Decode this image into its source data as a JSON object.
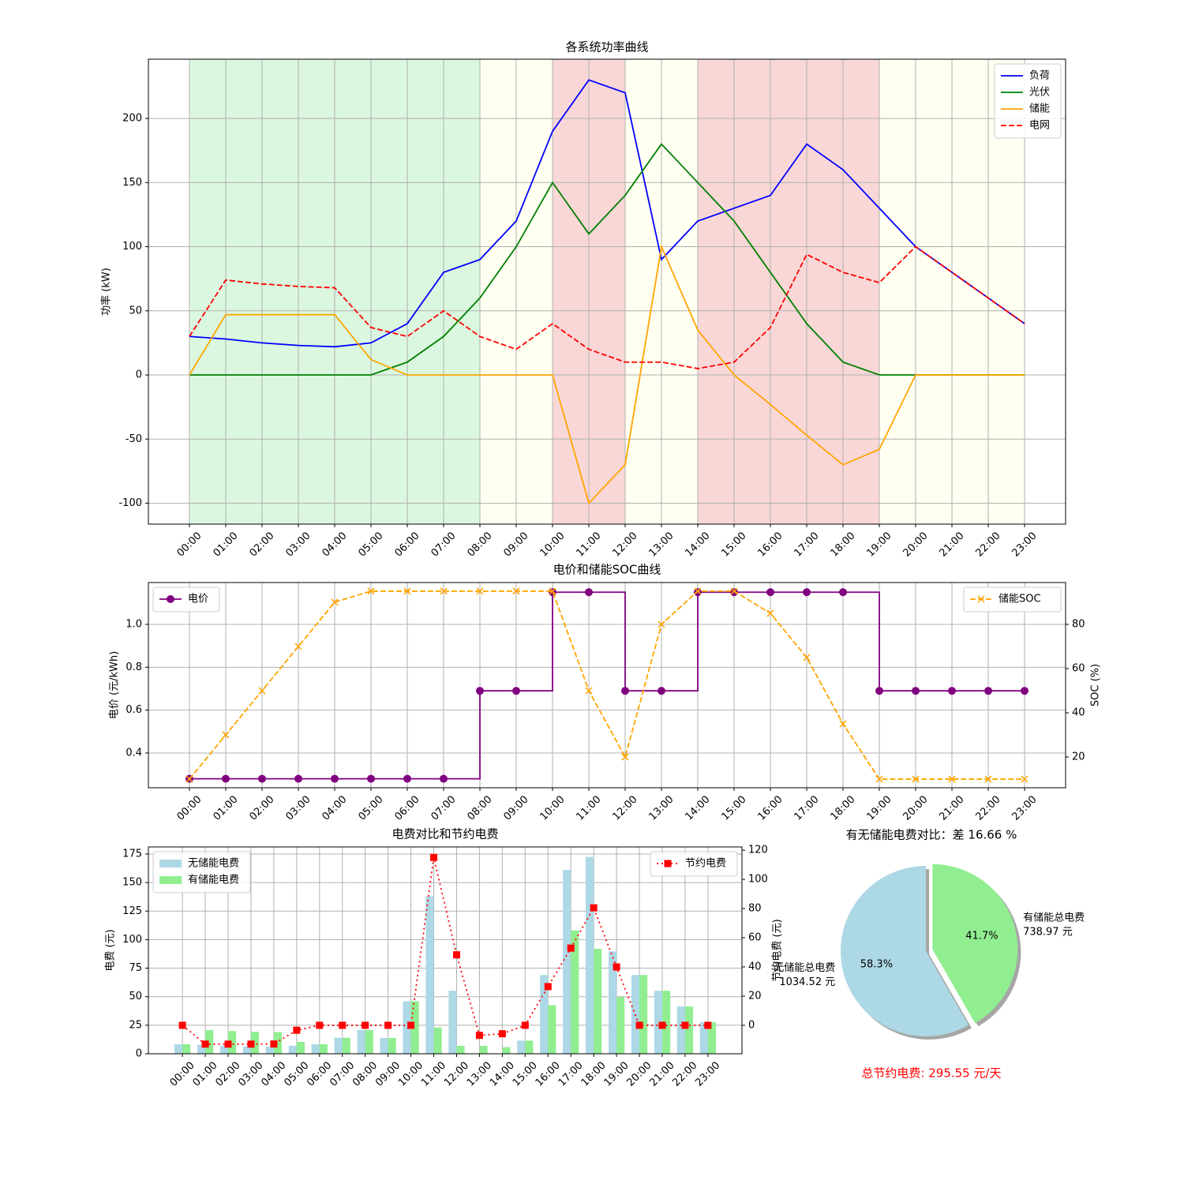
{
  "chart_data": [
    {
      "type": "line",
      "title": "各系统功率曲线",
      "y_label": "功率 (kW)",
      "categories": [
        "00:00",
        "01:00",
        "02:00",
        "03:00",
        "04:00",
        "05:00",
        "06:00",
        "07:00",
        "08:00",
        "09:00",
        "10:00",
        "11:00",
        "12:00",
        "13:00",
        "14:00",
        "15:00",
        "16:00",
        "17:00",
        "18:00",
        "19:00",
        "20:00",
        "21:00",
        "22:00",
        "23:00"
      ],
      "series": [
        {
          "name": "负荷",
          "color": "#0000ff",
          "values": [
            30,
            28,
            25,
            23,
            22,
            25,
            40,
            80,
            90,
            120,
            190,
            230,
            220,
            90,
            120,
            130,
            140,
            180,
            160,
            130,
            100,
            80,
            60,
            40
          ]
        },
        {
          "name": "光伏",
          "color": "#008000",
          "values": [
            0,
            0,
            0,
            0,
            0,
            0,
            10,
            30,
            60,
            100,
            150,
            110,
            140,
            180,
            150,
            120,
            80,
            40,
            10,
            0,
            0,
            0,
            0,
            0
          ]
        },
        {
          "name": "储能",
          "color": "#ffa500",
          "values": [
            0,
            47,
            47,
            47,
            47,
            12,
            0,
            0,
            0,
            0,
            0,
            -100,
            -70,
            100,
            35,
            0,
            -23,
            -47,
            -70,
            -58,
            0,
            0,
            0,
            0
          ]
        },
        {
          "name": "电网",
          "color": "#ff0000",
          "line_style": "dashed",
          "values": [
            30,
            74,
            71,
            69,
            68,
            37,
            30,
            50,
            30,
            20,
            40,
            20,
            10,
            10,
            5,
            10,
            37,
            94,
            80,
            72,
            100,
            80,
            60,
            40
          ]
        }
      ],
      "ylim": [
        -116.3,
        246.2
      ],
      "yticks": [
        -100,
        -50,
        0,
        50,
        100,
        150,
        200
      ],
      "grid": true,
      "legend": "upper right",
      "bands": [
        {
          "from": "00:00",
          "to": "08:00",
          "color": "#dbf7df"
        },
        {
          "from": "08:00",
          "to": "10:00",
          "color": "#fffff2"
        },
        {
          "from": "10:00",
          "to": "12:00",
          "color": "#f9d7d7"
        },
        {
          "from": "12:00",
          "to": "14:00",
          "color": "#fffff2"
        },
        {
          "from": "14:00",
          "to": "19:00",
          "color": "#f9d7d7"
        },
        {
          "from": "19:00",
          "to": "23:00",
          "color": "#fffff2"
        }
      ]
    },
    {
      "type": "line",
      "title": "电价和储能SOC曲线",
      "y_label": "电价 (元/kWh)",
      "y2_label": "SOC (%)",
      "categories": [
        "00:00",
        "01:00",
        "02:00",
        "03:00",
        "04:00",
        "05:00",
        "06:00",
        "07:00",
        "08:00",
        "09:00",
        "10:00",
        "11:00",
        "12:00",
        "13:00",
        "14:00",
        "15:00",
        "16:00",
        "17:00",
        "18:00",
        "19:00",
        "20:00",
        "21:00",
        "22:00",
        "23:00"
      ],
      "series": [
        {
          "name": "电价",
          "color": "#800080",
          "marker": "o",
          "drawstyle": "steps-post",
          "legend": "upper left",
          "values": [
            0.28,
            0.28,
            0.28,
            0.28,
            0.28,
            0.28,
            0.28,
            0.28,
            0.69,
            0.69,
            1.15,
            1.15,
            0.69,
            0.69,
            1.15,
            1.15,
            1.15,
            1.15,
            1.15,
            0.69,
            0.69,
            0.69,
            0.69,
            0.69
          ]
        },
        {
          "name": "储能SOC",
          "color": "#ffa500",
          "marker": "x",
          "line_style": "dashed",
          "axis": "y2",
          "legend": "upper right",
          "values": [
            10,
            30,
            50,
            70,
            90,
            95,
            95,
            95,
            95,
            95,
            95,
            50,
            20,
            80,
            95,
            95,
            85,
            65,
            35,
            10,
            10,
            10,
            10,
            10
          ]
        }
      ],
      "ylim": [
        0.238,
        1.195
      ],
      "yticks": [
        0.4,
        0.6,
        0.8,
        {
          "value": 1,
          "label": "1.0"
        }
      ],
      "y2lim": [
        6.1,
        98.9
      ],
      "y2ticks": [
        20,
        40,
        60,
        80
      ],
      "grid": true
    },
    {
      "type": "bar",
      "title": "电费对比和节约电费",
      "y_label": "电费 (元)",
      "y2_label": "节约电费 (元)",
      "categories": [
        "00:00",
        "01:00",
        "02:00",
        "03:00",
        "04:00",
        "05:00",
        "06:00",
        "07:00",
        "08:00",
        "09:00",
        "10:00",
        "11:00",
        "12:00",
        "13:00",
        "14:00",
        "15:00",
        "16:00",
        "17:00",
        "18:00",
        "19:00",
        "20:00",
        "21:00",
        "22:00",
        "23:00"
      ],
      "series": [
        {
          "name": "无储能电费",
          "color": "#add8e6",
          "legend": "upper left",
          "values": [
            8.4,
            7.8,
            7.0,
            6.4,
            6.2,
            7.0,
            8.4,
            14.0,
            20.7,
            13.8,
            46.0,
            138.0,
            55.2,
            0,
            0,
            11.5,
            69.0,
            161.0,
            172.5,
            89.7,
            69.0,
            55.2,
            41.4,
            27.6
          ]
        },
        {
          "name": "有储能电费",
          "color": "#90ee90",
          "legend": "upper left",
          "values": [
            8.4,
            20.7,
            19.9,
            19.3,
            19.0,
            10.4,
            8.4,
            14.0,
            20.7,
            13.8,
            46.0,
            23.0,
            6.9,
            6.9,
            5.8,
            11.5,
            42.6,
            108.1,
            92.0,
            49.7,
            69.0,
            55.2,
            41.4,
            27.6
          ]
        },
        {
          "name": "节约电费",
          "color": "#ff0000",
          "type": "line",
          "marker": "s",
          "line_style": "dotted",
          "axis": "y2",
          "legend": "upper right",
          "values": [
            0,
            -12.9,
            -12.9,
            -12.9,
            -12.8,
            -3.4,
            0,
            0,
            0,
            0,
            0,
            115.0,
            48.3,
            -6.9,
            -5.8,
            0,
            26.5,
            52.9,
            80.5,
            40.0,
            0,
            0,
            0,
            0
          ]
        }
      ],
      "ylim": [
        0,
        181.2
      ],
      "yticks": [
        0,
        25,
        50,
        75,
        100,
        125,
        150,
        175
      ],
      "y2lim": [
        -19.5,
        122.2
      ],
      "y2ticks": [
        0,
        20,
        40,
        60,
        80,
        100,
        120
      ],
      "grid": true
    },
    {
      "type": "pie",
      "title": "有无储能电费对比：差 16.66 %",
      "labels": [
        "无储能总电费",
        "有储能总电费"
      ],
      "values": [
        1034.52,
        738.97
      ],
      "value_labels": [
        "1034.52 元",
        "738.97 元"
      ],
      "percent_labels": [
        "58.3%",
        "41.7%"
      ],
      "colors": [
        "#add8e6",
        "#90ee90"
      ],
      "explode": [
        0,
        0.08
      ],
      "start_angle": 90,
      "shadow": true,
      "note": "总节约电费: 295.55 元/天"
    }
  ]
}
